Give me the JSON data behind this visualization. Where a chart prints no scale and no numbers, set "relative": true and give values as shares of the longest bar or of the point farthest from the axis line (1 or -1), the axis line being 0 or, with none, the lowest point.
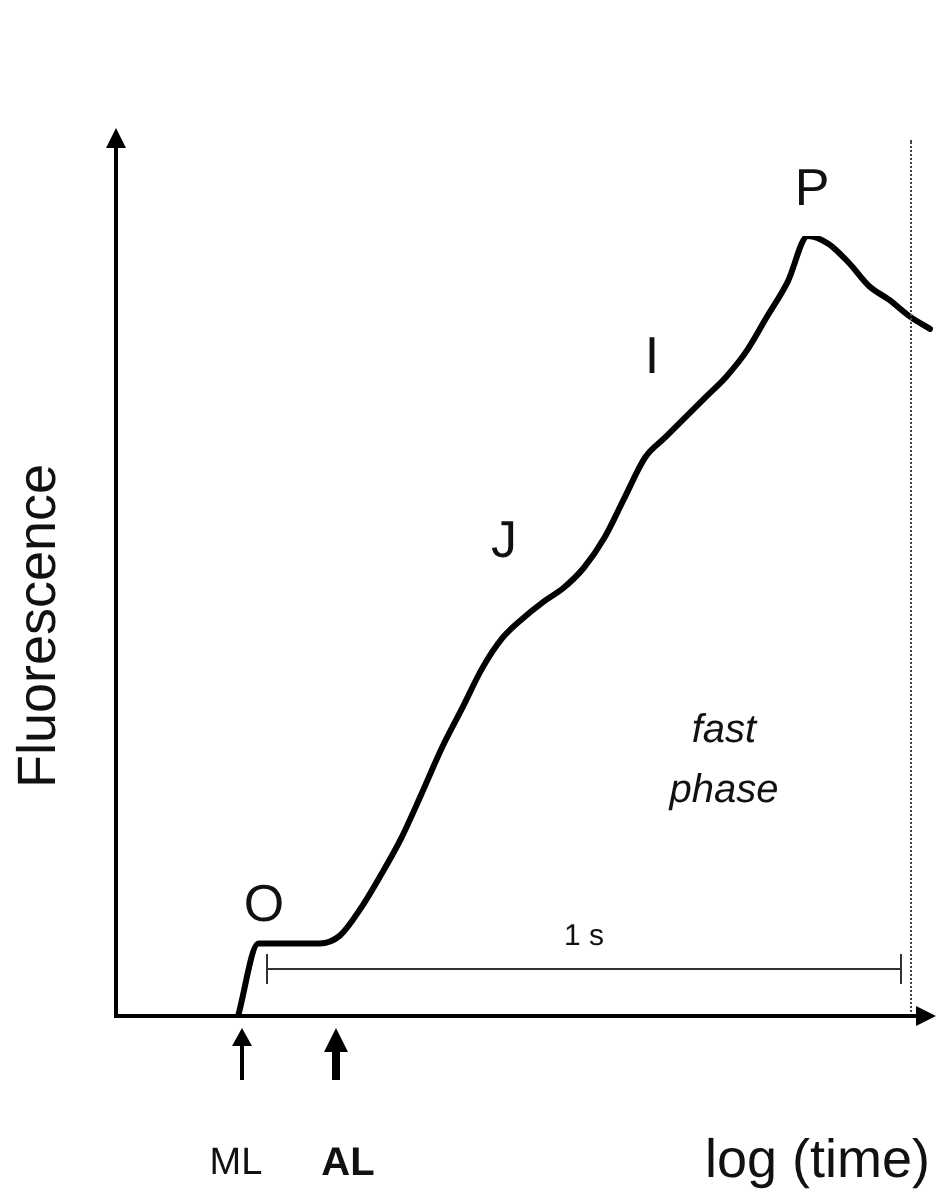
{
  "chart_data": {
    "type": "line",
    "relative": true,
    "xlabel": "log (time)",
    "ylabel": "Fluorescence",
    "legend": false,
    "grid": false,
    "marker": "none",
    "line_style": "solid",
    "categories": [
      null,
      null,
      null,
      null,
      null,
      null,
      null,
      null,
      null,
      null,
      null,
      null,
      null,
      null,
      null,
      null,
      null,
      null,
      null,
      null,
      null,
      null,
      null,
      null,
      null,
      null,
      null,
      null,
      null,
      null,
      null,
      null,
      null,
      null,
      null,
      null,
      null,
      null,
      null,
      null,
      null
    ],
    "series": [
      {
        "color": "#000000",
        "values": [
          null,
          null,
          null,
          null,
          null,
          null,
          0,
          0.093,
          0.093,
          0.093,
          0.093,
          0.103,
          0.137,
          0.18,
          0.227,
          0.284,
          0.343,
          0.394,
          0.446,
          0.485,
          0.51,
          0.531,
          0.549,
          0.575,
          0.613,
          0.665,
          0.716,
          0.742,
          0.768,
          0.794,
          0.82,
          0.853,
          0.897,
          0.941,
          1.0,
          0.99,
          0.966,
          0.936,
          0.918,
          0.897,
          0.881
        ]
      }
    ],
    "annotations": [
      "O",
      "J",
      "I",
      "P",
      "fast phase",
      "1 s",
      "ML",
      "AL"
    ]
  }
}
